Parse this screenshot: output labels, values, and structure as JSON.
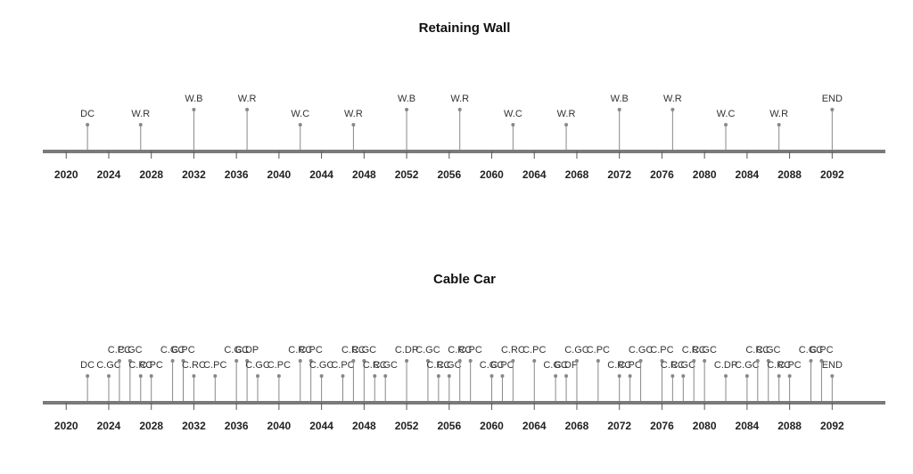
{
  "chart_data": [
    {
      "type": "timeline",
      "title": "Retaining Wall",
      "x": [
        2022,
        2027,
        2032,
        2037,
        2042,
        2047,
        2052,
        2057,
        2062,
        2067,
        2072,
        2077,
        2082,
        2087,
        2092
      ],
      "labels": [
        "DC",
        "W.R",
        "W.B",
        "W.R",
        "W.C",
        "W.R",
        "W.B",
        "W.R",
        "W.C",
        "W.R",
        "W.B",
        "W.R",
        "W.C",
        "W.R",
        "END"
      ],
      "xlim": [
        2017.8,
        2097
      ],
      "xticks": [
        2020,
        2024,
        2028,
        2032,
        2036,
        2040,
        2044,
        2048,
        2052,
        2056,
        2060,
        2064,
        2068,
        2072,
        2076,
        2080,
        2084,
        2088,
        2092
      ],
      "color": "#888888"
    },
    {
      "type": "timeline",
      "title": "Cable Car",
      "x": [
        2022,
        2024,
        2025,
        2026,
        2027,
        2028,
        2030,
        2031,
        2032,
        2034,
        2036,
        2037,
        2038,
        2040,
        2042,
        2043,
        2044,
        2046,
        2047,
        2048,
        2049,
        2050,
        2052,
        2054,
        2055,
        2056,
        2057,
        2058,
        2060,
        2061,
        2062,
        2064,
        2066,
        2067,
        2068,
        2070,
        2072,
        2073,
        2074,
        2076,
        2077,
        2078,
        2079,
        2080,
        2082,
        2084,
        2085,
        2086,
        2087,
        2088,
        2090,
        2091,
        2092
      ],
      "labels": [
        "DC",
        "C.GC",
        "C.PC",
        "C.GC",
        "C.RC",
        "C.PC",
        "C.GC",
        "C.PC",
        "C.RC",
        "C.PC",
        "C.GC",
        "C.DP",
        "C.GC",
        "C.PC",
        "C.RC",
        "C.PC",
        "C.GC",
        "C.PC",
        "C.RC",
        "C.GC",
        "C.RC",
        "C.GC",
        "C.DP",
        "C.GC",
        "C.RC",
        "C.GC",
        "C.RC",
        "C.PC",
        "C.GC",
        "C.PC",
        "C.RC",
        "C.PC",
        "C.GC",
        "C.DP",
        "C.GC",
        "C.PC",
        "C.RC",
        "C.PC",
        "C.GC",
        "C.PC",
        "C.RC",
        "C.GC",
        "C.RC",
        "C.GC",
        "C.DP",
        "C.GC",
        "C.RC",
        "C.GC",
        "C.RC",
        "C.PC",
        "C.GC",
        "C.PC",
        "END"
      ],
      "xlim": [
        2017.8,
        2097
      ],
      "xticks": [
        2020,
        2024,
        2028,
        2032,
        2036,
        2040,
        2044,
        2048,
        2052,
        2056,
        2060,
        2064,
        2068,
        2072,
        2076,
        2080,
        2084,
        2088,
        2092
      ],
      "color": "#888888"
    }
  ]
}
